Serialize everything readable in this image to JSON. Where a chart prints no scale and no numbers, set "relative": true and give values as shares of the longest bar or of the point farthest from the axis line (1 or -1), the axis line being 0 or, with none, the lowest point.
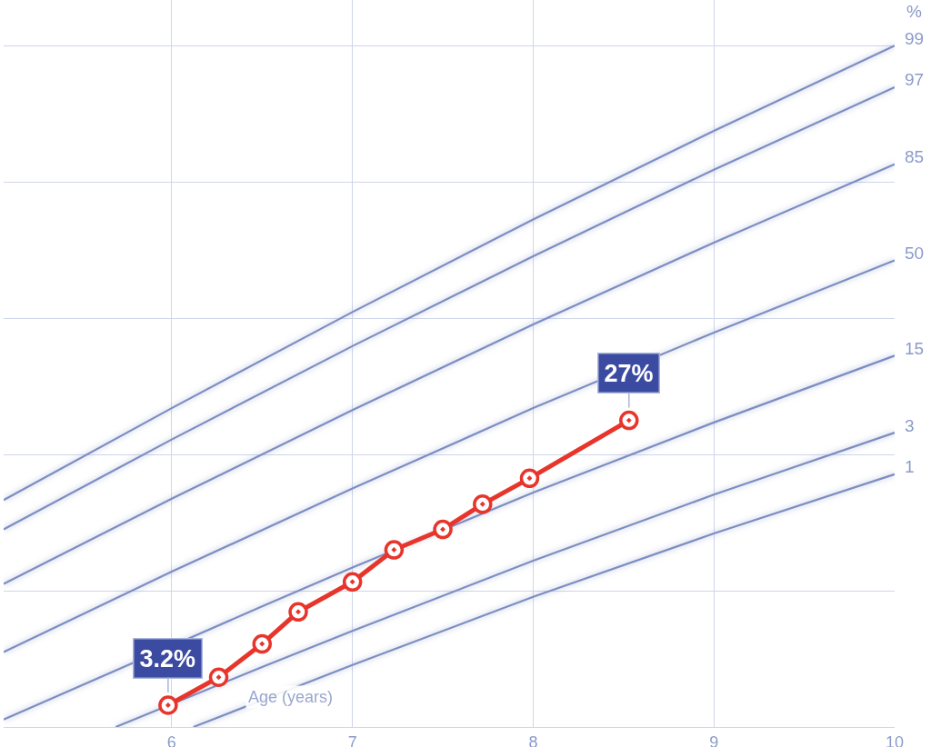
{
  "chart_data": {
    "type": "line",
    "xlabel": "Age (years)",
    "xlim": [
      5.07,
      10
    ],
    "xticks": [
      6,
      7,
      8,
      9,
      10
    ],
    "relative": true,
    "grid": true,
    "series": [
      {
        "name": "99",
        "color": "#7d8ec2",
        "x": [
          5.07,
          6,
          7,
          8,
          9,
          10
        ],
        "values": [
          0.333,
          0.468,
          0.609,
          0.745,
          0.875,
          1.0
        ]
      },
      {
        "name": "97",
        "color": "#7d8ec2",
        "x": [
          5.07,
          6,
          7,
          8,
          9,
          10
        ],
        "values": [
          0.29,
          0.422,
          0.559,
          0.691,
          0.818,
          0.939
        ]
      },
      {
        "name": "85",
        "color": "#7d8ec2",
        "x": [
          5.07,
          6,
          7,
          8,
          9,
          10
        ],
        "values": [
          0.21,
          0.335,
          0.465,
          0.591,
          0.711,
          0.826
        ]
      },
      {
        "name": "50",
        "color": "#7d8ec2",
        "x": [
          5.07,
          6,
          7,
          8,
          9,
          10
        ],
        "values": [
          0.11,
          0.228,
          0.35,
          0.468,
          0.579,
          0.685
        ]
      },
      {
        "name": "15",
        "color": "#7d8ec2",
        "x": [
          5.07,
          6.5,
          7,
          8,
          9,
          10
        ],
        "values": [
          0.011,
          0.177,
          0.234,
          0.344,
          0.447,
          0.545
        ]
      },
      {
        "name": "3",
        "color": "#7d8ec2",
        "x": [
          5.69,
          6.5,
          7,
          8,
          9,
          10
        ],
        "values": [
          0,
          0.088,
          0.141,
          0.244,
          0.341,
          0.432
        ]
      },
      {
        "name": "1",
        "color": "#7d8ec2",
        "x": [
          6.12,
          7,
          8,
          9,
          10
        ],
        "values": [
          0,
          0.091,
          0.191,
          0.284,
          0.371
        ]
      },
      {
        "color": "#e8352b",
        "marker": "circle",
        "x": [
          5.98,
          6.26,
          6.5,
          6.7,
          7.0,
          7.23,
          7.5,
          7.72,
          7.98,
          8.53
        ],
        "values": [
          0.032,
          0.073,
          0.122,
          0.169,
          0.213,
          0.26,
          0.29,
          0.327,
          0.365,
          0.45
        ]
      }
    ],
    "annotations": [
      {
        "text": "3.2%",
        "x": 5.98,
        "y": 0.032
      },
      {
        "text": "27%",
        "x": 8.53,
        "y": 0.45
      },
      "%"
    ]
  }
}
